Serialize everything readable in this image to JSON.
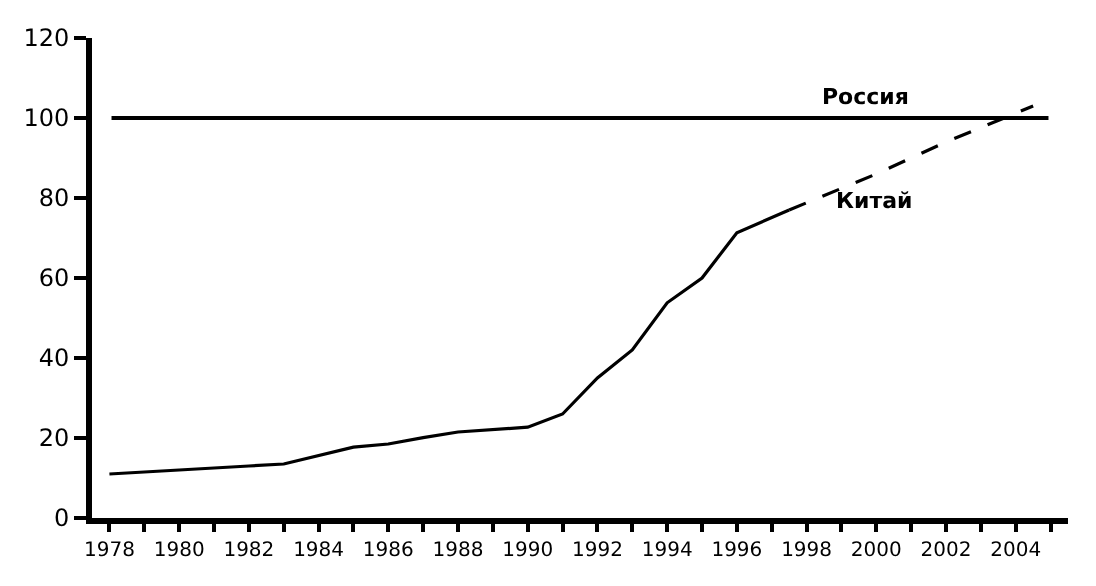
{
  "chart_data": {
    "type": "line",
    "xlim": [
      1977.5,
      2005.5
    ],
    "ylim": [
      0,
      120
    ],
    "xticks": [
      1978,
      {
        "value": 1979,
        "label": null
      },
      1980,
      {
        "value": 1981,
        "label": null
      },
      1982,
      {
        "value": 1983,
        "label": null
      },
      1984,
      {
        "value": 1985,
        "label": null
      },
      1986,
      {
        "value": 1987,
        "label": null
      },
      1988,
      {
        "value": 1989,
        "label": null
      },
      1990,
      {
        "value": 1991,
        "label": null
      },
      1992,
      {
        "value": 1993,
        "label": null
      },
      1994,
      {
        "value": 1995,
        "label": null
      },
      1996,
      {
        "value": 1997,
        "label": null
      },
      1998,
      {
        "value": 1999,
        "label": null
      },
      2000,
      {
        "value": 2001,
        "label": null
      },
      2002,
      {
        "value": 2003,
        "label": null
      },
      2004,
      {
        "value": 2005,
        "label": null
      }
    ],
    "yticks": [
      0,
      20,
      40,
      60,
      80,
      100,
      120
    ],
    "marker": "none",
    "series": [
      {
        "color": "#000000",
        "line_style": "solid",
        "x": [
          1978,
          1980,
          1982,
          1983,
          1985,
          1986,
          1987,
          1988,
          1990,
          1991,
          1992,
          1993,
          1994,
          1995,
          1996,
          1997.5
        ],
        "values": [
          11,
          12,
          13,
          13.5,
          17.7,
          18.5,
          20.1,
          21.5,
          22.7,
          26,
          35,
          42,
          53.8,
          60,
          71.3,
          77
        ]
      },
      {
        "color": "#000000",
        "line_style": "dashed",
        "x": [
          1997.5,
          2000,
          2002,
          2004.5
        ],
        "values": [
          77,
          86,
          94,
          103
        ]
      }
    ],
    "ref_lines": [
      {
        "axis": "y",
        "value": 100,
        "label": "Россия",
        "color": "#000000",
        "line_style": "solid"
      }
    ],
    "annotations": [
      "Китай"
    ]
  }
}
